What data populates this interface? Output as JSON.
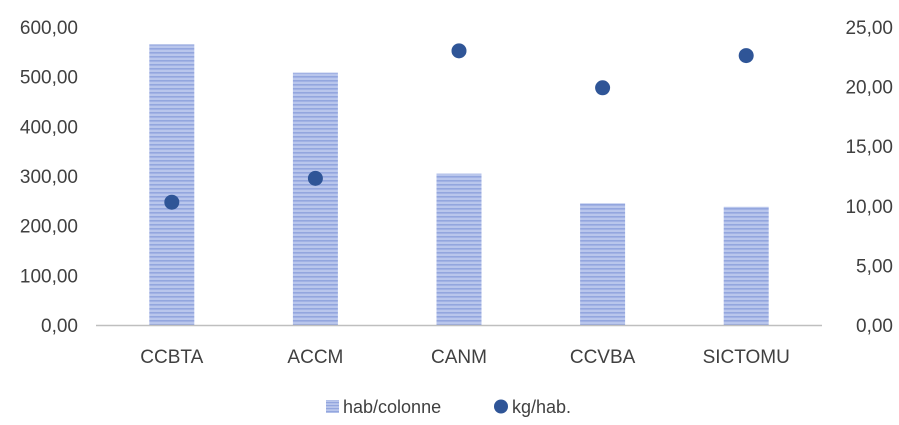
{
  "chart_data": {
    "type": "bar",
    "categories": [
      "CCBTA",
      "ACCM",
      "CANM",
      "CCVBA",
      "SICTOMU"
    ],
    "series": [
      {
        "name": "hab/colonne",
        "type": "bar",
        "axis": "left",
        "values": [
          565,
          508,
          305,
          245,
          238
        ],
        "color": "#aebde8",
        "stripe_color": "#8fa2dc"
      },
      {
        "name": "kg/hab.",
        "type": "scatter",
        "axis": "right",
        "values": [
          10.3,
          12.3,
          23.0,
          19.9,
          22.6
        ],
        "color": "#2f5597"
      }
    ],
    "y_left": {
      "min": 0,
      "max": 600,
      "ticks": [
        0,
        100,
        200,
        300,
        400,
        500,
        600
      ],
      "tick_labels": [
        "0,00",
        "100,00",
        "200,00",
        "300,00",
        "400,00",
        "500,00",
        "600,00"
      ]
    },
    "y_right": {
      "min": 0,
      "max": 25,
      "ticks": [
        0,
        5,
        10,
        15,
        20,
        25
      ],
      "tick_labels": [
        "0,00",
        "5,00",
        "10,00",
        "15,00",
        "20,00",
        "25,00"
      ]
    },
    "gridlines": false,
    "legend_position": "bottom"
  }
}
